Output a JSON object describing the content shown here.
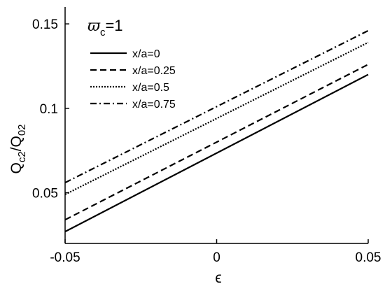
{
  "chart_data": {
    "type": "line",
    "xlabel": "ϵ",
    "ylabel": {
      "base": "Q",
      "sub1": "c2",
      "mid": "/Q",
      "sub2": "02"
    },
    "annotation": {
      "symbol": "ϖ",
      "sub": "c",
      "rest": "=1"
    },
    "xlim": [
      -0.05,
      0.05
    ],
    "ylim": [
      0.02,
      0.16
    ],
    "xticks": [
      -0.05,
      0,
      0.05
    ],
    "xtick_labels": [
      "-0.05",
      "0",
      "0.05"
    ],
    "yticks": [
      0.05,
      0.1,
      0.15
    ],
    "ytick_labels": [
      "0.05",
      "0.1",
      "0.15"
    ],
    "grid": false,
    "legend_position": "top-left",
    "x": [
      -0.05,
      0.05
    ],
    "series": [
      {
        "name": "x/a=0",
        "values": [
          0.027,
          0.12
        ],
        "dash": "solid"
      },
      {
        "name": "x/a=0.25",
        "values": [
          0.034,
          0.126
        ],
        "dash": "dashed"
      },
      {
        "name": "x/a=0.5",
        "values": [
          0.049,
          0.139
        ],
        "dash": "dotted"
      },
      {
        "name": "x/a=0.75",
        "values": [
          0.056,
          0.146
        ],
        "dash": "dashdot"
      }
    ]
  }
}
